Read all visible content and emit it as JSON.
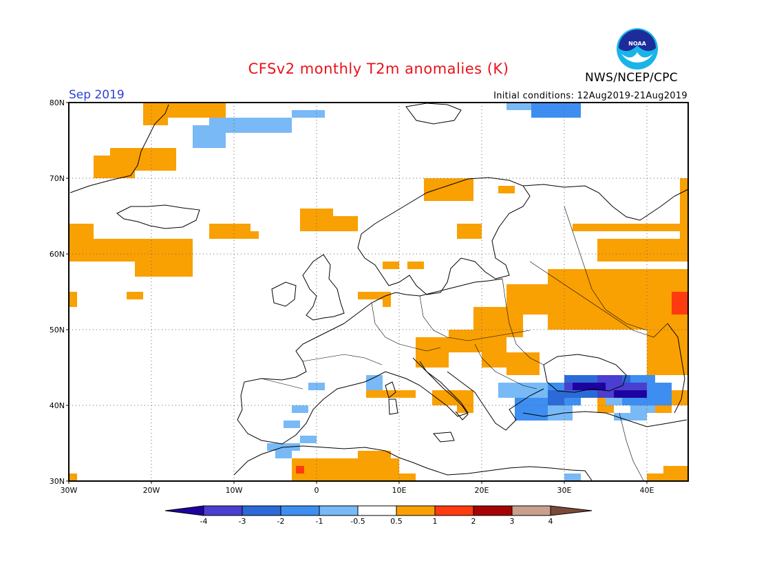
{
  "title": "CFSv2 monthly T2m anomalies (K)",
  "month": "Sep 2019",
  "initial_conditions": "Initial conditions: 12Aug2019-21Aug2019",
  "agency": "NWS/NCEP/CPC",
  "logo_text": "NOAA",
  "map": {
    "lon_range": [
      -30,
      45
    ],
    "lat_range": [
      30,
      80
    ],
    "lat_labels": [
      "80N",
      "70N",
      "60N",
      "50N",
      "40N",
      "30N"
    ],
    "lon_labels": [
      "30W",
      "20W",
      "10W",
      "0",
      "10E",
      "20E",
      "30E",
      "40E"
    ],
    "grid": "dotted"
  },
  "colorbar": {
    "ticks": [
      "-4",
      "-3",
      "-2",
      "-1",
      "-0.5",
      "0.5",
      "1",
      "2",
      "3",
      "4"
    ],
    "colors": [
      "#1e02a0",
      "#4a3fd0",
      "#2c6ad8",
      "#3d8ef0",
      "#78b9f6",
      "#ffffff",
      "#f9a002",
      "#fe3b0f",
      "#a50404",
      "#c8a08c",
      "#7a4a3a"
    ]
  }
}
